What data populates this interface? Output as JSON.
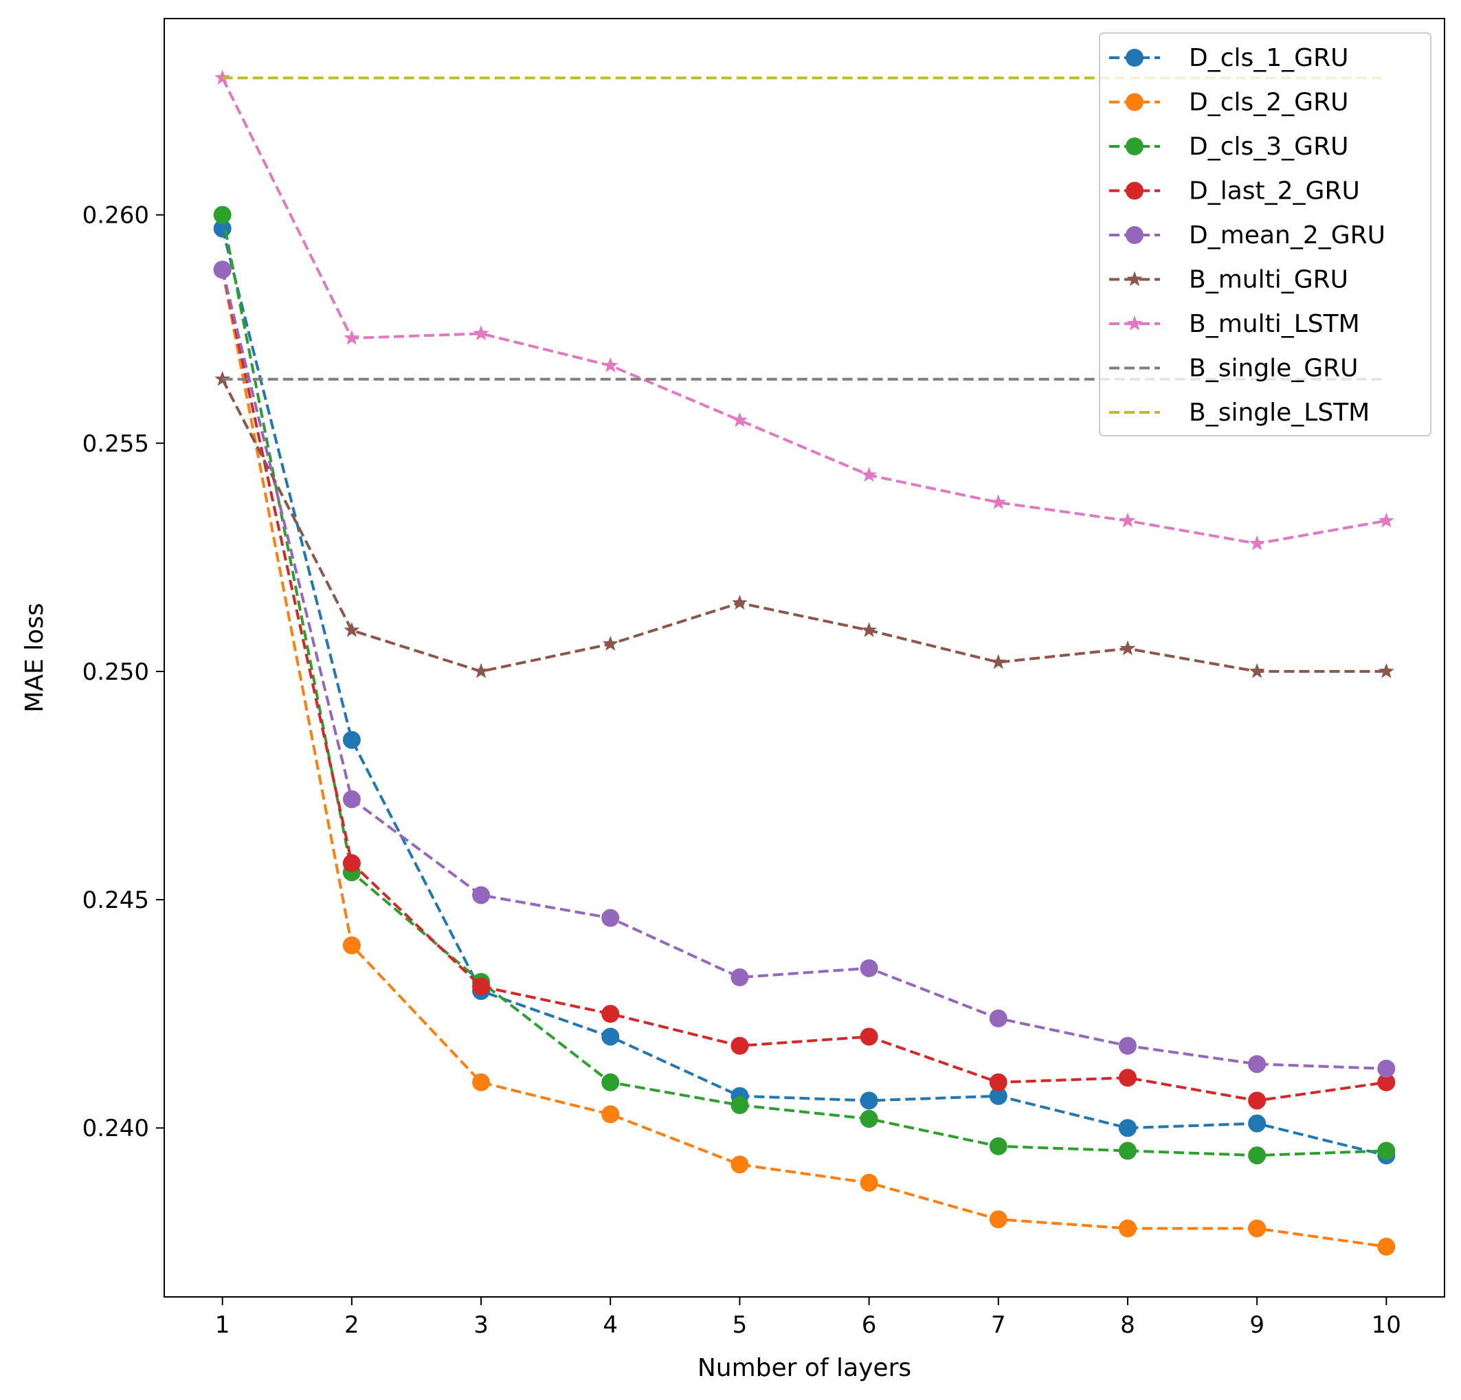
{
  "chart_data": {
    "type": "line",
    "title": "",
    "xlabel": "Number of layers",
    "ylabel": "MAE loss",
    "x": [
      1,
      2,
      3,
      4,
      5,
      6,
      7,
      8,
      9,
      10
    ],
    "xlim": [
      0.55,
      10.45
    ],
    "ylim": [
      0.2363,
      0.2643
    ],
    "xticks": [
      1,
      2,
      3,
      4,
      5,
      6,
      7,
      8,
      9,
      10
    ],
    "xtick_labels": [
      "1",
      "2",
      "3",
      "4",
      "5",
      "6",
      "7",
      "8",
      "9",
      "10"
    ],
    "yticks": [
      0.24,
      0.245,
      0.25,
      0.255,
      0.26
    ],
    "ytick_labels": [
      "0.240",
      "0.245",
      "0.250",
      "0.255",
      "0.260"
    ],
    "grid": false,
    "legend_position": "top-right",
    "series": [
      {
        "name": "D_cls_1_GRU",
        "color": "#1f77b4",
        "marker": "circle",
        "values": [
          0.2597,
          0.2485,
          0.243,
          0.242,
          0.2407,
          0.2406,
          0.2407,
          0.24,
          0.2401,
          0.2394
        ]
      },
      {
        "name": "D_cls_2_GRU",
        "color": "#ff7f0e",
        "marker": "circle",
        "values": [
          0.2588,
          0.244,
          0.241,
          0.2403,
          0.2392,
          0.2388,
          0.238,
          0.2378,
          0.2378,
          0.2374
        ]
      },
      {
        "name": "D_cls_3_GRU",
        "color": "#2ca02c",
        "marker": "circle",
        "values": [
          0.26,
          0.2456,
          0.2432,
          0.241,
          0.2405,
          0.2402,
          0.2396,
          0.2395,
          0.2394,
          0.2395
        ]
      },
      {
        "name": "D_last_2_GRU",
        "color": "#d62728",
        "marker": "circle",
        "values": [
          0.2588,
          0.2458,
          0.2431,
          0.2425,
          0.2418,
          0.242,
          0.241,
          0.2411,
          0.2406,
          0.241
        ]
      },
      {
        "name": "D_mean_2_GRU",
        "color": "#9467bd",
        "marker": "circle",
        "values": [
          0.2588,
          0.2472,
          0.2451,
          0.2446,
          0.2433,
          0.2435,
          0.2424,
          0.2418,
          0.2414,
          0.2413
        ]
      },
      {
        "name": "B_multi_GRU",
        "color": "#8c564b",
        "marker": "star",
        "values": [
          0.2564,
          0.2509,
          0.25,
          0.2506,
          0.2515,
          0.2509,
          0.2502,
          0.2505,
          0.25,
          0.25
        ]
      },
      {
        "name": "B_multi_LSTM",
        "color": "#e377c2",
        "marker": "star",
        "values": [
          0.263,
          0.2573,
          0.2574,
          0.2567,
          0.2555,
          0.2543,
          0.2537,
          0.2533,
          0.2528,
          0.2533
        ]
      },
      {
        "name": "B_single_GRU",
        "color": "#7f7f7f",
        "marker": "none",
        "values": [
          0.2564,
          0.2564,
          0.2564,
          0.2564,
          0.2564,
          0.2564,
          0.2564,
          0.2564,
          0.2564,
          0.2564
        ]
      },
      {
        "name": "B_single_LSTM",
        "color": "#bcbd22",
        "marker": "none",
        "values": [
          0.263,
          0.263,
          0.263,
          0.263,
          0.263,
          0.263,
          0.263,
          0.263,
          0.263,
          0.263
        ]
      }
    ]
  }
}
